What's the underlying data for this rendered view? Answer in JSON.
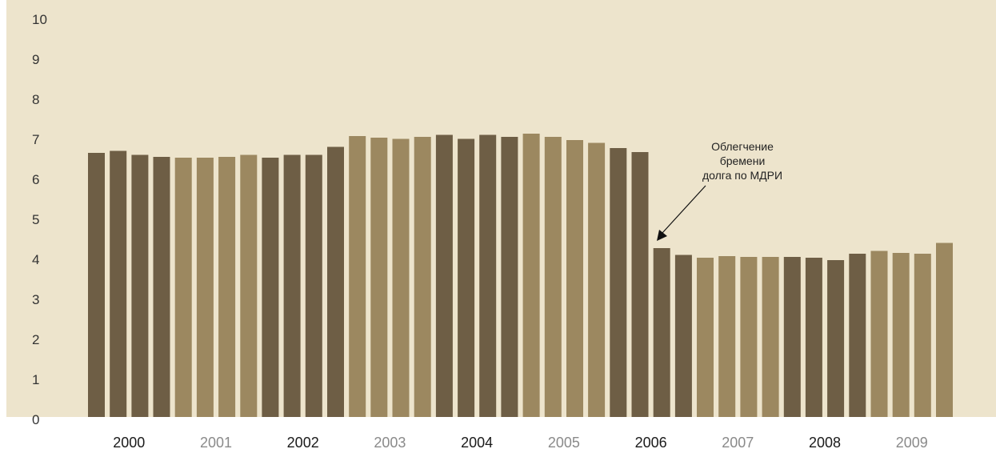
{
  "colors": {
    "background": "#ede4cc",
    "dark": "#6e5e45",
    "light": "#9c8860",
    "year_dark": "#1a1a1a",
    "year_light": "#8a8a8a"
  },
  "chart_data": {
    "type": "bar",
    "title": "",
    "xlabel": "",
    "ylabel": "",
    "ylim": [
      0,
      10
    ],
    "yticks": [
      "0",
      "1",
      "2",
      "3",
      "4",
      "5",
      "6",
      "7",
      "8",
      "9",
      "10"
    ],
    "year_labels": [
      "2000",
      "2001",
      "2002",
      "2003",
      "2004",
      "2005",
      "2006",
      "2007",
      "2008",
      "2009"
    ],
    "bars_per_year": 4,
    "values": [
      6.6,
      6.65,
      6.55,
      6.5,
      6.48,
      6.48,
      6.5,
      6.55,
      6.48,
      6.55,
      6.55,
      6.75,
      7.02,
      6.98,
      6.95,
      7.0,
      7.05,
      6.95,
      7.05,
      7.0,
      7.08,
      7.0,
      6.92,
      6.85,
      6.72,
      6.62,
      4.22,
      4.05,
      3.98,
      4.02,
      4.0,
      4.0,
      4.0,
      3.98,
      3.92,
      4.08,
      4.15,
      4.1,
      4.08,
      4.35
    ],
    "annotation": {
      "lines": [
        "Облегчение",
        "бремени",
        "долга по МДРИ"
      ],
      "target_index": 26
    }
  }
}
